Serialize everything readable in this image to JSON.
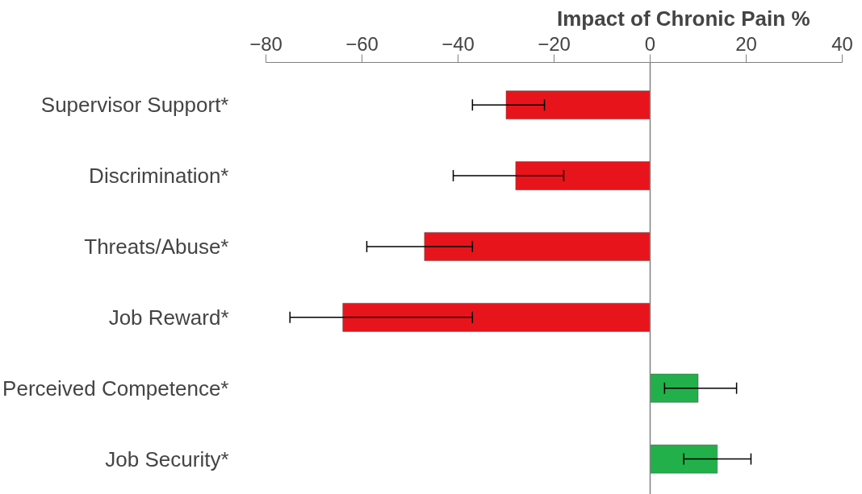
{
  "chart_data": {
    "type": "bar",
    "orientation": "horizontal",
    "title": "Impact of Chronic Pain %",
    "categories": [
      "Supervisor Support*",
      "Discrimination*",
      "Threats/Abuse*",
      "Job Reward*",
      "Perceived Competence*",
      "Job Security*"
    ],
    "values": [
      -30,
      -28,
      -47,
      -64,
      10,
      14
    ],
    "colors": [
      "#e8141c",
      "#e8141c",
      "#e8141c",
      "#e8141c",
      "#22b04a",
      "#22b04a"
    ],
    "errors": [
      [
        -37,
        -22
      ],
      [
        -41,
        -18
      ],
      [
        -59,
        -37
      ],
      [
        -75,
        -37
      ],
      [
        3,
        18
      ],
      [
        7,
        21
      ]
    ],
    "xlim": [
      -80,
      40
    ],
    "xticks": [
      -80,
      -60,
      -40,
      -20,
      0,
      20,
      40
    ],
    "ref_lines": [
      {
        "axis": "x",
        "value": 0,
        "color": "#808080"
      }
    ],
    "grid": false
  }
}
